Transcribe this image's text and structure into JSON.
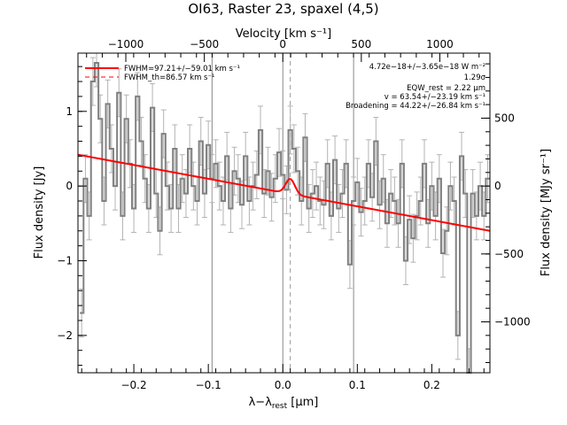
{
  "chart_data": {
    "type": "line",
    "title": "OI63, Raster 23, spaxel (4,5)",
    "xlabel": "λ−λ_rest [μm]",
    "xlabel_main": "λ−λ",
    "xlabel_sub": "rest",
    "xlabel_unit": " [μm]",
    "ylabel": "Flux density [Jy]",
    "top_xlabel": "Velocity [km s⁻¹]",
    "right_ylabel": "Flux density [MJy sr⁻¹]",
    "xlim": [
      -0.275,
      0.278
    ],
    "ylim": [
      -2.5,
      1.78
    ],
    "xticks": [
      -0.2,
      -0.1,
      0.0,
      0.1,
      0.2
    ],
    "xtick_labels": [
      "−0.2",
      "−0.1",
      "0.0",
      "0.1",
      "0.2"
    ],
    "yticks": [
      -2,
      -1,
      0,
      1
    ],
    "ytick_labels": [
      "−2",
      "−1",
      "0",
      "1"
    ],
    "top_ticks": [
      -1000,
      -500,
      0,
      500,
      1000
    ],
    "top_tick_labels": [
      "−1000",
      "−500",
      "0",
      "500",
      "1000"
    ],
    "right_ticks": [
      -1000,
      -500,
      0,
      500
    ],
    "right_tick_labels": [
      "−1000",
      "−500",
      "0",
      "500"
    ],
    "right_scale_per_jy": 550,
    "vertical_lines": [
      -0.095,
      0.0,
      0.095
    ],
    "center_line": 0.01,
    "colors": {
      "data": "#808080",
      "fit": "#ff0000",
      "frame": "#000000"
    },
    "legend": [
      {
        "label": "FWHM=97.21+/−59.01 km s⁻¹",
        "style": "solid"
      },
      {
        "label": "FWHM_th=86.57 km s⁻¹",
        "style": "dashed"
      }
    ],
    "annotations": [
      "4.72e−18+/−3.65e−18 W m⁻²",
      "1.29σ",
      "EQW_rest = 2.22 μm",
      "v = 63.54+/−23.19 km s⁻¹",
      "Broadening = 44.22+/−26.84 km s⁻¹"
    ],
    "fit": {
      "continuum_start": [
        -0.275,
        0.42
      ],
      "continuum_end": [
        0.278,
        -0.6
      ],
      "peak_center": 0.01,
      "peak_amp": 0.2,
      "peak_sigma": 0.0062
    },
    "series": [
      {
        "name": "spectrum",
        "style": "steps",
        "x": [
          -0.27,
          -0.265,
          -0.26,
          -0.255,
          -0.25,
          -0.245,
          -0.24,
          -0.235,
          -0.23,
          -0.225,
          -0.22,
          -0.215,
          -0.21,
          -0.205,
          -0.2,
          -0.195,
          -0.19,
          -0.185,
          -0.18,
          -0.175,
          -0.17,
          -0.165,
          -0.16,
          -0.155,
          -0.15,
          -0.145,
          -0.14,
          -0.135,
          -0.13,
          -0.125,
          -0.12,
          -0.115,
          -0.11,
          -0.105,
          -0.1,
          -0.095,
          -0.09,
          -0.085,
          -0.08,
          -0.075,
          -0.07,
          -0.065,
          -0.06,
          -0.055,
          -0.05,
          -0.045,
          -0.04,
          -0.035,
          -0.03,
          -0.025,
          -0.02,
          -0.015,
          -0.01,
          -0.005,
          0.0,
          0.005,
          0.01,
          0.015,
          0.02,
          0.025,
          0.03,
          0.035,
          0.04,
          0.045,
          0.05,
          0.055,
          0.06,
          0.065,
          0.07,
          0.075,
          0.08,
          0.085,
          0.09,
          0.095,
          0.1,
          0.105,
          0.11,
          0.115,
          0.12,
          0.125,
          0.13,
          0.135,
          0.14,
          0.145,
          0.15,
          0.155,
          0.16,
          0.165,
          0.17,
          0.175,
          0.18,
          0.185,
          0.19,
          0.195,
          0.2,
          0.205,
          0.21,
          0.215,
          0.22,
          0.225,
          0.23,
          0.235,
          0.24,
          0.245,
          0.25,
          0.255,
          0.26,
          0.265,
          0.27,
          0.275
        ],
        "y": [
          -1.7,
          0.1,
          -0.4,
          1.4,
          1.65,
          0.9,
          -0.2,
          1.1,
          0.5,
          0.0,
          1.25,
          -0.4,
          0.9,
          0.3,
          -0.3,
          1.2,
          0.6,
          0.1,
          -0.3,
          1.05,
          -0.1,
          -0.6,
          0.7,
          0.0,
          -0.3,
          0.5,
          -0.3,
          0.1,
          -0.1,
          0.5,
          0.0,
          -0.2,
          0.6,
          -0.1,
          0.55,
          0.1,
          0.3,
          0.0,
          -0.2,
          0.4,
          -0.3,
          0.2,
          0.1,
          -0.25,
          0.4,
          -0.2,
          0.0,
          0.15,
          0.75,
          -0.1,
          0.2,
          -0.15,
          0.1,
          0.45,
          0.15,
          -0.05,
          0.75,
          0.5,
          0.2,
          -0.2,
          0.65,
          -0.3,
          -0.1,
          0.0,
          -0.2,
          -0.25,
          0.3,
          -0.4,
          0.35,
          -0.3,
          -0.1,
          0.3,
          -1.05,
          -0.2,
          0.05,
          -0.35,
          -0.2,
          0.3,
          -0.15,
          0.6,
          -0.25,
          0.1,
          -0.5,
          -0.1,
          -0.2,
          -0.5,
          0.3,
          -1.0,
          -0.45,
          -0.7,
          -0.4,
          -0.2,
          0.3,
          -0.5,
          0.0,
          -0.4,
          0.1,
          -0.9,
          -0.6,
          0.0,
          -0.2,
          -2.0,
          0.4,
          -0.1,
          -2.5,
          -0.1,
          -0.4,
          0.0,
          -0.4,
          0.1
        ],
        "yerr": 0.32
      }
    ]
  }
}
